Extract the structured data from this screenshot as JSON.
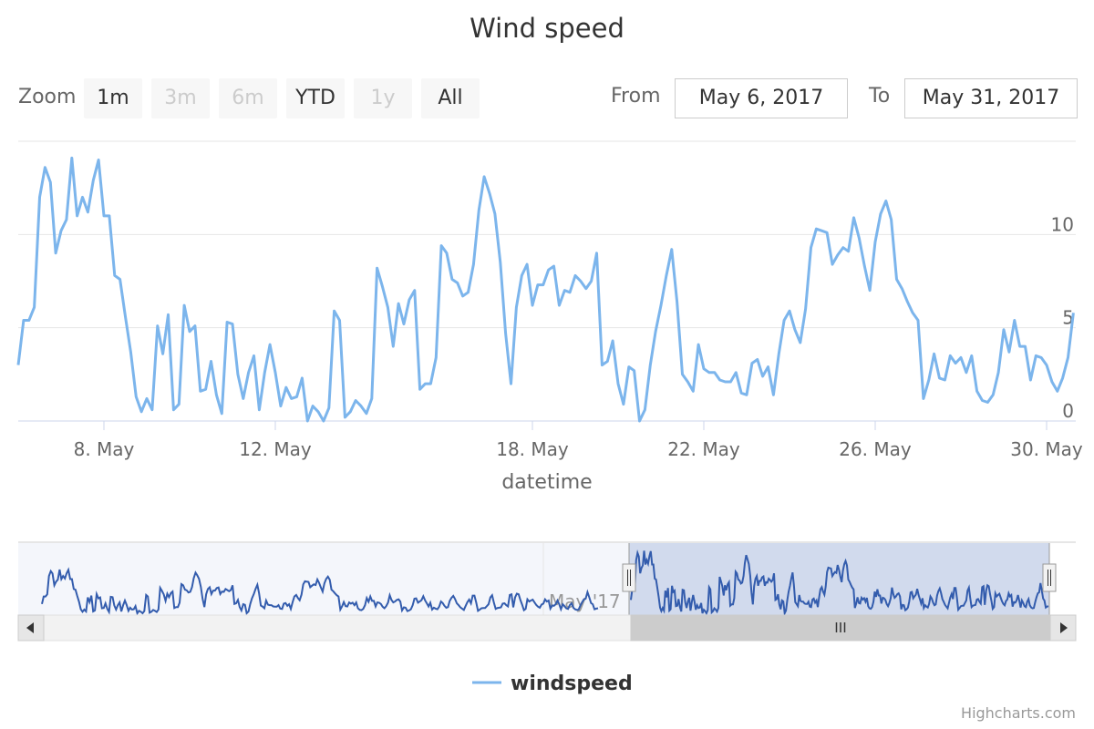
{
  "chart_data": {
    "type": "line",
    "title": "Wind speed",
    "xlabel": "datetime",
    "ylabel": "",
    "ylim": [
      0,
      15
    ],
    "x_range": [
      "2017-05-06",
      "2017-05-31T18:00"
    ],
    "x_ticks": [
      "8. May",
      "12. May",
      "18. May",
      "22. May",
      "26. May",
      "30. May"
    ],
    "y_ticks": [
      "0",
      "5",
      "10"
    ],
    "grid": true,
    "legend_position": "bottom-center",
    "series": [
      {
        "name": "windspeed",
        "color": "#7cb5ec",
        "step_hours": 3,
        "start": "2017-05-06T00:00",
        "values": [
          3.0,
          5.4,
          5.4,
          6.1,
          12.0,
          13.6,
          12.8,
          9.0,
          10.2,
          10.8,
          14.1,
          11.0,
          12.0,
          11.2,
          12.9,
          14.0,
          11.0,
          11.0,
          7.8,
          7.6,
          5.6,
          3.7,
          1.3,
          0.5,
          1.2,
          0.6,
          5.1,
          3.6,
          5.7,
          0.6,
          0.9,
          6.2,
          4.8,
          5.1,
          1.6,
          1.7,
          3.2,
          1.4,
          0.4,
          5.3,
          5.2,
          2.5,
          1.2,
          2.6,
          3.5,
          0.6,
          2.6,
          4.1,
          2.6,
          0.8,
          1.8,
          1.2,
          1.3,
          2.3,
          0.0,
          0.8,
          0.5,
          0.0,
          0.7,
          5.9,
          5.4,
          0.2,
          0.5,
          1.1,
          0.8,
          0.4,
          1.2,
          8.2,
          7.2,
          6.1,
          4.0,
          6.3,
          5.2,
          6.5,
          7.0,
          1.7,
          2.0,
          2.0,
          3.4,
          9.4,
          9.0,
          7.6,
          7.4,
          6.7,
          6.9,
          8.4,
          11.3,
          13.1,
          12.2,
          11.1,
          8.5,
          4.7,
          2.0,
          6.1,
          7.8,
          8.4,
          6.2,
          7.3,
          7.3,
          8.1,
          8.3,
          6.2,
          7.0,
          6.9,
          7.8,
          7.5,
          7.1,
          7.5,
          9.0,
          3.0,
          3.2,
          4.3,
          2.0,
          0.9,
          2.9,
          2.7,
          0.0,
          0.6,
          3.0,
          4.8,
          6.2,
          7.8,
          9.2,
          6.4,
          2.5,
          2.1,
          1.6,
          4.1,
          2.8,
          2.6,
          2.6,
          2.2,
          2.1,
          2.1,
          2.6,
          1.5,
          1.4,
          3.1,
          3.3,
          2.4,
          2.9,
          1.4,
          3.6,
          5.4,
          5.9,
          4.9,
          4.2,
          6.0,
          9.3,
          10.3,
          10.2,
          10.1,
          8.4,
          8.9,
          9.3,
          9.1,
          10.9,
          9.8,
          8.3,
          7.0,
          9.6,
          11.1,
          11.8,
          10.8,
          7.6,
          7.1,
          6.4,
          5.8,
          5.4,
          1.2,
          2.2,
          3.6,
          2.3,
          2.2,
          3.5,
          3.1,
          3.4,
          2.6,
          3.5,
          1.6,
          1.1,
          1.0,
          1.4,
          2.6,
          4.9,
          3.7,
          5.4,
          4.0,
          4.0,
          2.2,
          3.5,
          3.4,
          3.0,
          2.1,
          1.6,
          2.3,
          3.4,
          5.8,
          4.3,
          3.5,
          3.8,
          4.3,
          4.5,
          3.8,
          0.9,
          1.9,
          1.8,
          0.7,
          0.9,
          1.3,
          2.6,
          4.7,
          4.8,
          3.4,
          3.8,
          4.2,
          5.5,
          4.2,
          3.2,
          2.2,
          3.4,
          1.2,
          1.8,
          1.5,
          1.3,
          2.1,
          3.8,
          3.3,
          2.4,
          1.8,
          2.0,
          4.0,
          5.0,
          5.6,
          4.6,
          3.2,
          2.6,
          1.9,
          1.5,
          1.1,
          2.4,
          3.6,
          4.4,
          3.2,
          5.7,
          5.7,
          3.4,
          0.8,
          1.2,
          1.6,
          1.7,
          1.7,
          2.3,
          2.9,
          5.1,
          5.8,
          3.5,
          1.4,
          1.7,
          1.8,
          1.9,
          3.1,
          3.2,
          2.6,
          2.2,
          5.9,
          6.1,
          1.9,
          5.1,
          6.3,
          6.1,
          4.3,
          2.8,
          1.0,
          1.4,
          4.5,
          3.8,
          4.1,
          4.4,
          3.5,
          2.7,
          2.1,
          1.8,
          2.8,
          3.1,
          4.5,
          3.8,
          4.1,
          1.5,
          2.5,
          2.4,
          2.9,
          4.1,
          2.9,
          1.3,
          2.9,
          2.3,
          1.6,
          1.4,
          2.6,
          3.2,
          1.8,
          1.3,
          1.1,
          1.2,
          2.5,
          3.6,
          4.5,
          4.7,
          6.8,
          5.2,
          3.3,
          2.9,
          1.3,
          1.5,
          1.6
        ]
      }
    ]
  },
  "range_selector": {
    "zoom_label": "Zoom",
    "buttons": [
      {
        "label": "1m",
        "enabled": true
      },
      {
        "label": "3m",
        "enabled": false
      },
      {
        "label": "6m",
        "enabled": false
      },
      {
        "label": "YTD",
        "enabled": true
      },
      {
        "label": "1y",
        "enabled": false
      },
      {
        "label": "All",
        "enabled": true
      }
    ],
    "from_label": "From",
    "from_value": "May 6, 2017",
    "to_label": "To",
    "to_value": "May 31, 2017"
  },
  "navigator": {
    "label": "May '17",
    "selected_fraction": [
      0.58,
      0.98
    ],
    "series_color": "#335cad",
    "mask_color": "#ccd6eb"
  },
  "legend": {
    "item": "windspeed"
  },
  "credits": "Highcharts.com"
}
